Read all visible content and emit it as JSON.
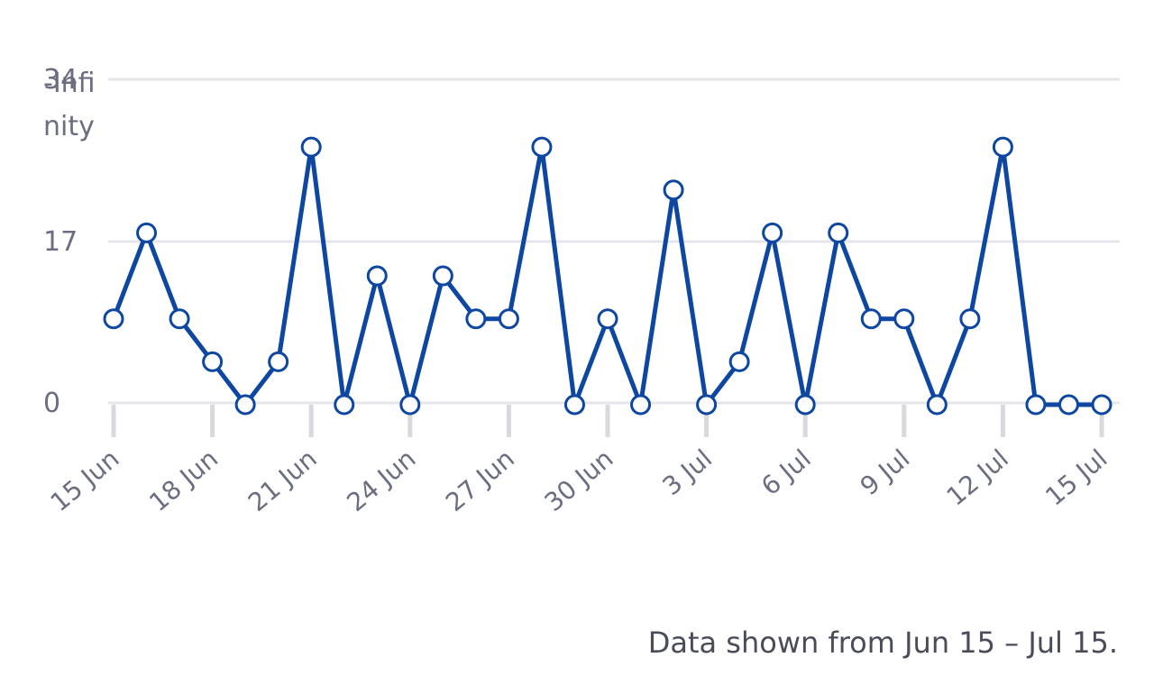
{
  "caption": "Data shown from Jun 15 – Jul 15.",
  "overlay_label": "-Infinity",
  "colors": {
    "line": "#0d47a1",
    "grid": "#e6e6ea",
    "tick": "#d8d8de",
    "text": "#6b6e80",
    "marker_fill": "#ffffff"
  },
  "chart_data": {
    "type": "line",
    "title": "",
    "xlabel": "",
    "ylabel": "",
    "ylim": [
      0,
      34
    ],
    "yticks": [
      0,
      17,
      34
    ],
    "grid": true,
    "x_tick_labels": [
      "15 Jun",
      "18 Jun",
      "21 Jun",
      "24 Jun",
      "27 Jun",
      "30 Jun",
      "3 Jul",
      "6 Jul",
      "9 Jul",
      "12 Jul",
      "15 Jul"
    ],
    "series": [
      {
        "x": [
          "2024-06-15",
          "2024-06-16",
          "2024-06-17",
          "2024-06-18",
          "2024-06-19",
          "2024-06-20",
          "2024-06-21",
          "2024-06-22",
          "2024-06-23",
          "2024-06-24",
          "2024-06-25",
          "2024-06-26",
          "2024-06-27",
          "2024-06-28",
          "2024-06-29",
          "2024-06-30",
          "2024-07-01",
          "2024-07-02",
          "2024-07-03",
          "2024-07-04",
          "2024-07-05",
          "2024-07-06",
          "2024-07-07",
          "2024-07-08",
          "2024-07-09",
          "2024-07-10",
          "2024-07-11",
          "2024-07-12",
          "2024-07-13",
          "2024-07-14",
          "2024-07-15"
        ],
        "values": [
          9,
          18,
          9,
          4.5,
          0,
          4.5,
          27,
          0,
          13.5,
          0,
          13.5,
          9,
          9,
          27,
          0,
          9,
          0,
          22.5,
          0,
          4.5,
          18,
          0,
          18,
          9,
          9,
          0,
          9,
          27,
          0,
          0,
          0
        ]
      }
    ]
  }
}
